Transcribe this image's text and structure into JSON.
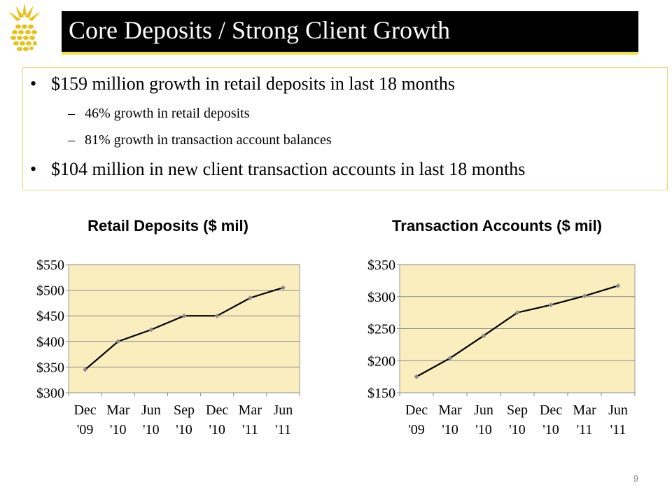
{
  "slide": {
    "title": "Core Deposits / Strong Client Growth",
    "page_number": "9",
    "colors": {
      "title_bar": "#000000",
      "accent": "#f2e23a",
      "plot_bg": "#faeebe",
      "line": "#000000",
      "marker": "#8c8c8c",
      "logo": "#e8c21a"
    },
    "logo_icon": "pineapple-icon"
  },
  "bullets": [
    {
      "level": 1,
      "text": "$159 million growth in retail deposits in last 18 months"
    },
    {
      "level": 2,
      "text": "46% growth in retail deposits"
    },
    {
      "level": 2,
      "text": "81% growth in transaction account balances"
    },
    {
      "level": 1,
      "text": "$104 million in new client transaction accounts in last 18 months"
    }
  ],
  "bullet_symbols": {
    "level1": "•",
    "level2": "–"
  },
  "chart_data": [
    {
      "type": "line",
      "title": "Retail Deposits ($ mil)",
      "categories": [
        [
          "Dec",
          "'09"
        ],
        [
          "Mar",
          "'10"
        ],
        [
          "Jun",
          "'10"
        ],
        [
          "Sep",
          "'10"
        ],
        [
          "Dec",
          "'10"
        ],
        [
          "Mar",
          "'11"
        ],
        [
          "Jun",
          "'11"
        ]
      ],
      "values": [
        345,
        400,
        423,
        450,
        450,
        485,
        505
      ],
      "ylim": [
        300,
        550
      ],
      "yticks": [
        300,
        350,
        400,
        450,
        500,
        550
      ],
      "ytick_labels": [
        "$300",
        "$350",
        "$400",
        "$450",
        "$500",
        "$550"
      ],
      "grid": true
    },
    {
      "type": "line",
      "title": "Transaction Accounts ($ mil)",
      "categories": [
        [
          "Dec",
          "'09"
        ],
        [
          "Mar",
          "'10"
        ],
        [
          "Jun",
          "'10"
        ],
        [
          "Sep",
          "'10"
        ],
        [
          "Dec",
          "'10"
        ],
        [
          "Mar",
          "'11"
        ],
        [
          "Jun",
          "'11"
        ]
      ],
      "values": [
        175,
        204,
        239,
        275,
        287,
        301,
        317
      ],
      "ylim": [
        150,
        350
      ],
      "yticks": [
        150,
        200,
        250,
        300,
        350
      ],
      "ytick_labels": [
        "$150",
        "$200",
        "$250",
        "$300",
        "$350"
      ],
      "grid": true
    }
  ]
}
